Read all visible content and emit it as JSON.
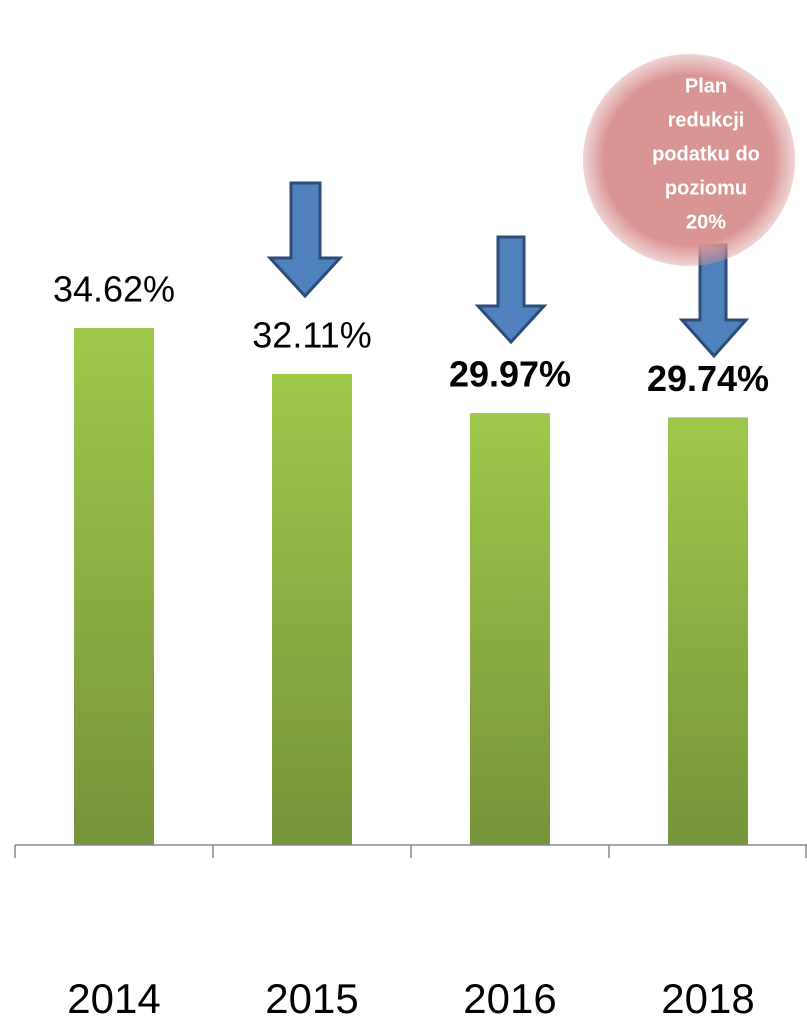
{
  "chart_data": {
    "type": "bar",
    "categories": [
      "2014",
      "2015",
      "2016",
      "2018"
    ],
    "values": [
      34.62,
      32.11,
      29.97,
      29.74
    ],
    "value_labels": [
      "34.62%",
      "32.11%",
      "29.97%",
      "29.74%"
    ],
    "bold_labels": [
      false,
      false,
      true,
      true
    ],
    "color": "#9bc34a",
    "ylim": [
      6.4,
      38
    ],
    "annotation": [
      "Plan",
      "redukcji",
      "podatku do",
      "poziomu",
      "20%"
    ]
  }
}
